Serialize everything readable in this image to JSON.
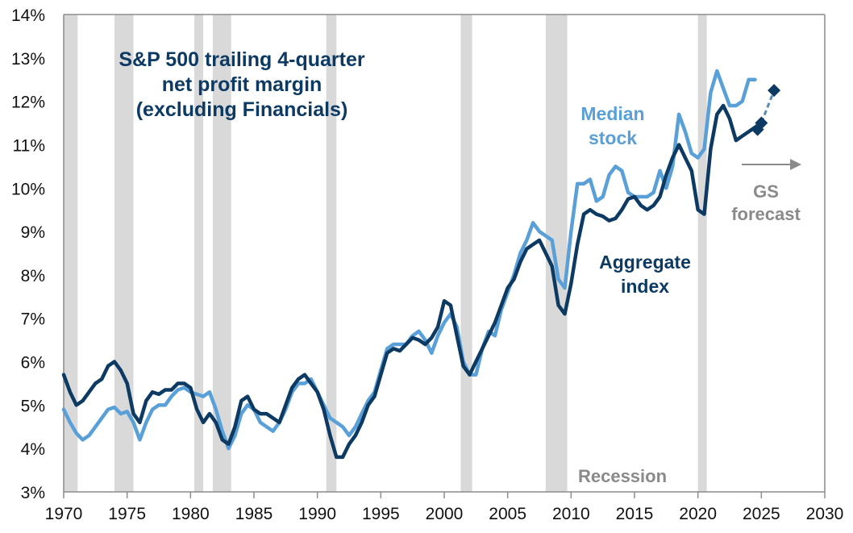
{
  "chart_data": {
    "type": "line",
    "title": "S&P 500 trailing 4-quarter net profit margin (excluding Financials)",
    "title_lines": [
      "S&P 500 trailing 4-quarter",
      "net profit margin",
      "(excluding Financials)"
    ],
    "xlabel": "",
    "ylabel": "",
    "xlim": [
      1970,
      2030
    ],
    "ylim": [
      3,
      14
    ],
    "x_ticks": [
      1970,
      1975,
      1980,
      1985,
      1990,
      1995,
      2000,
      2005,
      2010,
      2015,
      2020,
      2025,
      2030
    ],
    "y_ticks": [
      3,
      4,
      5,
      6,
      7,
      8,
      9,
      10,
      11,
      12,
      13,
      14
    ],
    "y_tick_suffix": "%",
    "grid": false,
    "colors": {
      "aggregate": "#0d3a63",
      "median": "#5aa0d8",
      "recession": "#d9d9d9",
      "annotation": "#8a8a8a"
    },
    "recessions": [
      [
        1970.0,
        1971.1
      ],
      [
        1974.0,
        1975.5
      ],
      [
        1980.3,
        1981.0
      ],
      [
        1981.75,
        1983.2
      ],
      [
        1990.7,
        1991.5
      ],
      [
        2001.3,
        2002.2
      ],
      [
        2008.0,
        2009.7
      ],
      [
        2020.0,
        2020.7
      ]
    ],
    "series": [
      {
        "name": "Aggregate index",
        "x": [
          1970,
          1970.5,
          1971,
          1971.5,
          1972,
          1972.5,
          1973,
          1973.5,
          1974,
          1974.5,
          1975,
          1975.5,
          1976,
          1976.5,
          1977,
          1977.5,
          1978,
          1978.5,
          1979,
          1979.5,
          1980,
          1980.5,
          1981,
          1981.5,
          1982,
          1982.5,
          1983,
          1983.5,
          1984,
          1984.5,
          1985,
          1985.5,
          1986,
          1986.5,
          1987,
          1987.5,
          1988,
          1988.5,
          1989,
          1989.5,
          1990,
          1990.5,
          1991,
          1991.5,
          1992,
          1992.5,
          1993,
          1993.5,
          1994,
          1994.5,
          1995,
          1995.5,
          1996,
          1996.5,
          1997,
          1997.5,
          1998,
          1998.5,
          1999,
          1999.5,
          2000,
          2000.5,
          2001,
          2001.5,
          2002,
          2002.5,
          2003,
          2003.5,
          2004,
          2004.5,
          2005,
          2005.5,
          2006,
          2006.5,
          2007,
          2007.5,
          2008,
          2008.5,
          2009,
          2009.5,
          2010,
          2010.5,
          2011,
          2011.5,
          2012,
          2012.5,
          2013,
          2013.5,
          2014,
          2014.5,
          2015,
          2015.5,
          2016,
          2016.5,
          2017,
          2017.5,
          2018,
          2018.5,
          2019,
          2019.5,
          2020,
          2020.5,
          2021,
          2021.5,
          2022,
          2022.5,
          2023,
          2023.5,
          2024,
          2024.5,
          2025
        ],
        "values": [
          5.7,
          5.3,
          5.0,
          5.1,
          5.3,
          5.5,
          5.6,
          5.9,
          6.0,
          5.8,
          5.5,
          4.8,
          4.6,
          5.1,
          5.3,
          5.25,
          5.35,
          5.35,
          5.5,
          5.5,
          5.4,
          4.9,
          4.6,
          4.8,
          4.6,
          4.2,
          4.1,
          4.5,
          5.1,
          5.2,
          4.9,
          4.8,
          4.8,
          4.7,
          4.6,
          5.0,
          5.4,
          5.6,
          5.7,
          5.5,
          5.3,
          4.9,
          4.3,
          3.8,
          3.8,
          4.1,
          4.3,
          4.6,
          5.0,
          5.2,
          5.7,
          6.2,
          6.3,
          6.25,
          6.4,
          6.55,
          6.5,
          6.4,
          6.55,
          6.8,
          7.4,
          7.3,
          6.6,
          5.9,
          5.7,
          6.0,
          6.3,
          6.6,
          6.9,
          7.3,
          7.7,
          7.9,
          8.3,
          8.6,
          8.7,
          8.8,
          8.5,
          8.2,
          7.3,
          7.1,
          7.8,
          8.7,
          9.4,
          9.5,
          9.4,
          9.35,
          9.25,
          9.3,
          9.5,
          9.75,
          9.8,
          9.6,
          9.5,
          9.6,
          9.8,
          10.3,
          10.7,
          11.0,
          10.7,
          10.4,
          9.5,
          9.4,
          10.9,
          11.7,
          11.9,
          11.6,
          11.1,
          11.2,
          11.3,
          11.4,
          11.5
        ]
      },
      {
        "name": "Median stock",
        "x": [
          1970,
          1970.5,
          1971,
          1971.5,
          1972,
          1972.5,
          1973,
          1973.5,
          1974,
          1974.5,
          1975,
          1975.5,
          1976,
          1976.5,
          1977,
          1977.5,
          1978,
          1978.5,
          1979,
          1979.5,
          1980,
          1980.5,
          1981,
          1981.5,
          1982,
          1982.5,
          1983,
          1983.5,
          1984,
          1984.5,
          1985,
          1985.5,
          1986,
          1986.5,
          1987,
          1987.5,
          1988,
          1988.5,
          1989,
          1989.5,
          1990,
          1990.5,
          1991,
          1991.5,
          1992,
          1992.5,
          1993,
          1993.5,
          1994,
          1994.5,
          1995,
          1995.5,
          1996,
          1996.5,
          1997,
          1997.5,
          1998,
          1998.5,
          1999,
          1999.5,
          2000,
          2000.5,
          2001,
          2001.5,
          2002,
          2002.5,
          2003,
          2003.5,
          2004,
          2004.5,
          2005,
          2005.5,
          2006,
          2006.5,
          2007,
          2007.5,
          2008,
          2008.5,
          2009,
          2009.5,
          2010,
          2010.5,
          2011,
          2011.5,
          2012,
          2012.5,
          2013,
          2013.5,
          2014,
          2014.5,
          2015,
          2015.5,
          2016,
          2016.5,
          2017,
          2017.5,
          2018,
          2018.5,
          2019,
          2019.5,
          2020,
          2020.5,
          2021,
          2021.5,
          2022,
          2022.5,
          2023,
          2023.5,
          2024,
          2024.5
        ],
        "values": [
          4.9,
          4.6,
          4.35,
          4.2,
          4.3,
          4.5,
          4.7,
          4.9,
          4.95,
          4.8,
          4.85,
          4.6,
          4.2,
          4.6,
          4.9,
          5.0,
          5.0,
          5.2,
          5.35,
          5.4,
          5.3,
          5.25,
          5.2,
          5.3,
          4.9,
          4.4,
          4.0,
          4.3,
          4.8,
          5.0,
          4.9,
          4.6,
          4.5,
          4.4,
          4.6,
          4.9,
          5.3,
          5.5,
          5.5,
          5.6,
          5.3,
          5.0,
          4.7,
          4.6,
          4.5,
          4.3,
          4.5,
          4.8,
          5.1,
          5.3,
          5.8,
          6.3,
          6.4,
          6.4,
          6.4,
          6.6,
          6.7,
          6.5,
          6.2,
          6.6,
          6.9,
          7.1,
          6.8,
          6.0,
          5.7,
          5.7,
          6.3,
          6.7,
          6.6,
          7.2,
          7.6,
          8.0,
          8.5,
          8.8,
          9.2,
          9.0,
          8.9,
          8.8,
          7.9,
          7.7,
          9.0,
          10.1,
          10.1,
          10.2,
          9.7,
          9.8,
          10.3,
          10.5,
          10.4,
          9.9,
          9.8,
          9.8,
          9.8,
          9.9,
          10.4,
          10.0,
          10.5,
          11.7,
          11.3,
          10.8,
          10.7,
          10.9,
          12.2,
          12.7,
          12.3,
          11.9,
          11.9,
          12.0,
          12.5,
          12.5
        ]
      },
      {
        "name": "GS forecast",
        "style": "dashed",
        "marker": "diamond",
        "x": [
          2024.7,
          2025.0,
          2026.0
        ],
        "values": [
          11.35,
          11.5,
          12.25
        ]
      }
    ],
    "annotations": [
      {
        "text": "Median stock",
        "lines": [
          "Median",
          "stock"
        ],
        "series": "Median stock"
      },
      {
        "text": "Aggregate index",
        "lines": [
          "Aggregate",
          "index"
        ],
        "series": "Aggregate index"
      },
      {
        "text": "GS forecast",
        "lines": [
          "GS",
          "forecast"
        ],
        "arrow": "right"
      },
      {
        "text": "Recession",
        "lines": [
          "Recession"
        ]
      }
    ]
  }
}
